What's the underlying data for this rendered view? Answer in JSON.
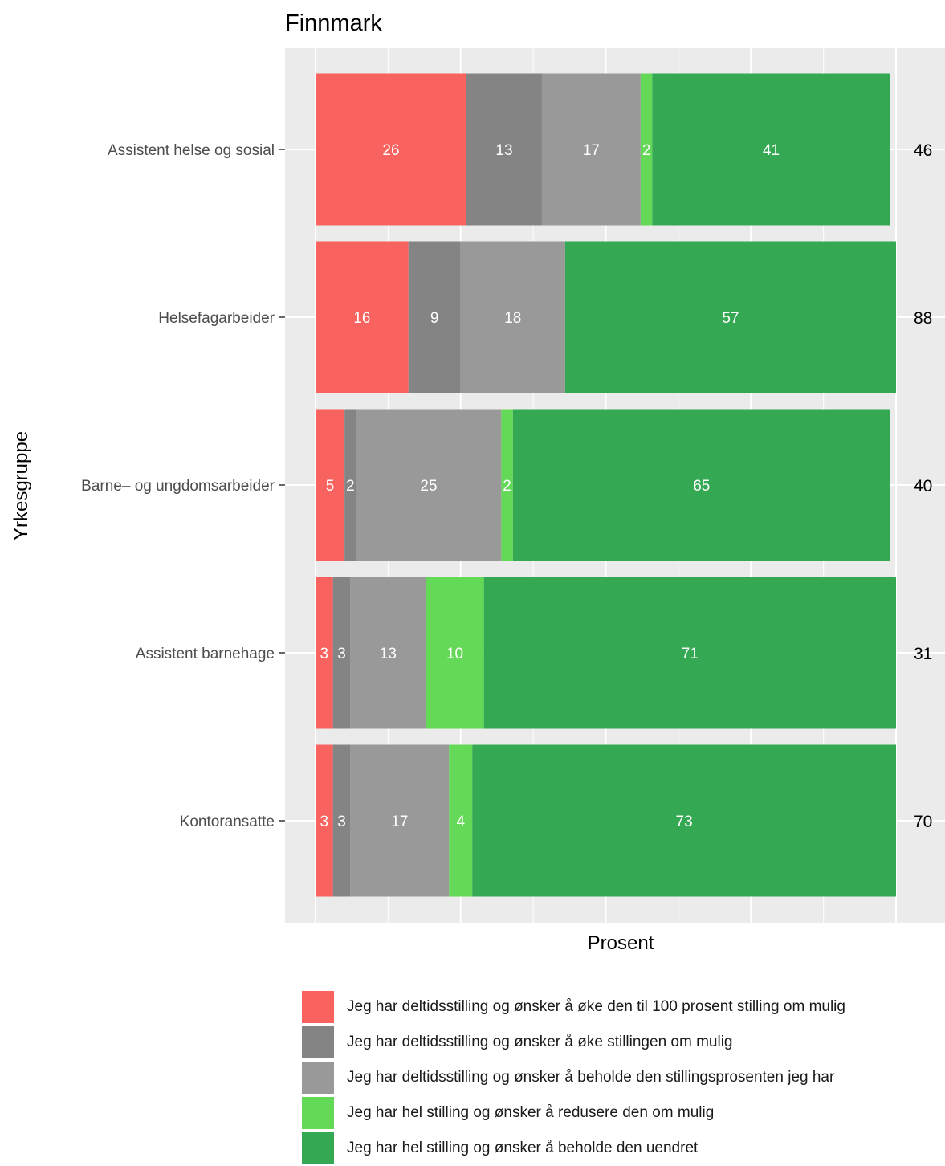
{
  "chart_data": {
    "type": "bar",
    "orientation": "horizontal",
    "stacked": true,
    "title": "Finnmark",
    "xlabel": "Prosent",
    "ylabel": "Yrkesgruppe",
    "xlim": [
      0,
      100
    ],
    "grid": true,
    "legend_position": "bottom",
    "categories": [
      "Assistent helse og sosial",
      "Helsefagarbeider",
      "Barne– og ungdomsarbeider",
      "Assistent barnehage",
      "Kontoransatte"
    ],
    "counts": [
      "46",
      "88",
      "40",
      "31",
      "70"
    ],
    "series": [
      {
        "name": "Jeg har deltidsstilling og ønsker å øke den til 100 prosent stilling om mulig",
        "color": "#f8625f",
        "values": [
          26,
          16,
          5,
          3,
          3
        ]
      },
      {
        "name": "Jeg har deltidsstilling og ønsker å øke stillingen om mulig",
        "color": "#848484",
        "values": [
          13,
          9,
          2,
          3,
          3
        ]
      },
      {
        "name": "Jeg har deltidsstilling og ønsker å beholde den stillingsprosenten jeg har",
        "color": "#999999",
        "values": [
          17,
          18,
          25,
          13,
          17
        ]
      },
      {
        "name": "Jeg har hel stilling og ønsker å redusere den om mulig",
        "color": "#63d957",
        "values": [
          2,
          0,
          2,
          10,
          4
        ]
      },
      {
        "name": "Jeg har hel stilling og ønsker å beholde den uendret",
        "color": "#34a853",
        "values": [
          41,
          57,
          65,
          71,
          73
        ]
      }
    ]
  }
}
